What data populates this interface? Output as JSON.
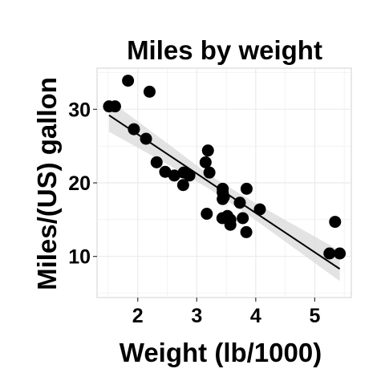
{
  "chart_data": {
    "type": "scatter",
    "title": "Miles by weight",
    "xlabel": "Weight (lb/1000)",
    "ylabel": "Miles/(US) gallon",
    "xlim": [
      1.31,
      5.62
    ],
    "ylim": [
      4.4,
      35.6
    ],
    "xticks": [
      2,
      3,
      4,
      5
    ],
    "yticks": [
      10,
      20,
      30
    ],
    "grid": true,
    "points": [
      {
        "x": 2.62,
        "y": 21.0
      },
      {
        "x": 2.875,
        "y": 21.0
      },
      {
        "x": 2.32,
        "y": 22.8
      },
      {
        "x": 3.215,
        "y": 21.4
      },
      {
        "x": 3.44,
        "y": 18.7
      },
      {
        "x": 3.46,
        "y": 18.1
      },
      {
        "x": 3.57,
        "y": 14.3
      },
      {
        "x": 3.19,
        "y": 24.4
      },
      {
        "x": 3.15,
        "y": 22.8
      },
      {
        "x": 3.44,
        "y": 19.2
      },
      {
        "x": 3.44,
        "y": 17.8
      },
      {
        "x": 4.07,
        "y": 16.4
      },
      {
        "x": 3.73,
        "y": 17.3
      },
      {
        "x": 3.78,
        "y": 15.2
      },
      {
        "x": 5.25,
        "y": 10.4
      },
      {
        "x": 5.424,
        "y": 10.4
      },
      {
        "x": 5.345,
        "y": 14.7
      },
      {
        "x": 2.2,
        "y": 32.4
      },
      {
        "x": 1.615,
        "y": 30.4
      },
      {
        "x": 1.835,
        "y": 33.9
      },
      {
        "x": 2.465,
        "y": 21.5
      },
      {
        "x": 3.52,
        "y": 15.5
      },
      {
        "x": 3.435,
        "y": 15.2
      },
      {
        "x": 3.84,
        "y": 13.3
      },
      {
        "x": 3.845,
        "y": 19.2
      },
      {
        "x": 1.935,
        "y": 27.3
      },
      {
        "x": 2.14,
        "y": 26.0
      },
      {
        "x": 1.513,
        "y": 30.4
      },
      {
        "x": 3.17,
        "y": 15.8
      },
      {
        "x": 2.77,
        "y": 19.7
      },
      {
        "x": 3.57,
        "y": 15.0
      },
      {
        "x": 2.78,
        "y": 21.4
      }
    ],
    "fit": {
      "method": "linear",
      "intercept": 37.285,
      "slope": -5.344,
      "confidence_band": [
        {
          "x": 1.513,
          "lower": 26.96,
          "upper": 31.26
        },
        {
          "x": 2.5,
          "lower": 22.55,
          "upper": 25.4
        },
        {
          "x": 3.217,
          "lower": 19.15,
          "upper": 21.03
        },
        {
          "x": 4.0,
          "lower": 14.92,
          "upper": 17.22
        },
        {
          "x": 5.424,
          "lower": 6.64,
          "upper": 10.78
        }
      ]
    },
    "colors": {
      "point": "#000000",
      "line": "#000000",
      "band": "#d9d9d9",
      "grid": "#ebebeb",
      "panel_border": "#d0d0d0"
    }
  }
}
